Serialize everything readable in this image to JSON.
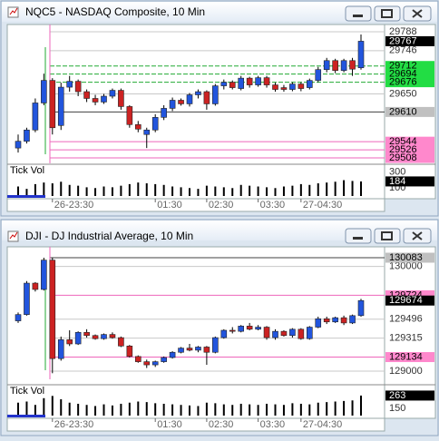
{
  "chart_data": [
    {
      "type": "candlestick",
      "title": "NQC5 - NASDAQ Composite, 10 Min",
      "categories": [
        null,
        null,
        null,
        null,
        "26-23:30",
        null,
        null,
        null,
        null,
        null,
        null,
        null,
        null,
        null,
        null,
        null,
        "01:30",
        null,
        null,
        null,
        null,
        null,
        "02:30",
        null,
        null,
        null,
        null,
        null,
        "03:30",
        null,
        null,
        null,
        null,
        "27-04:30",
        null,
        null,
        null,
        null,
        null,
        null,
        null
      ],
      "open": [
        29530,
        29545,
        29570,
        29630,
        29680,
        29580,
        29665,
        29678,
        29655,
        29640,
        29632,
        29645,
        29658,
        29622,
        29582,
        29560,
        29570,
        29598,
        29618,
        29636,
        29628,
        29648,
        29655,
        29628,
        29668,
        29676,
        29662,
        29685,
        29670,
        29686,
        29670,
        29664,
        29660,
        29672,
        29664,
        29680,
        29704,
        29724,
        29702,
        29724,
        29708
      ],
      "high": [
        29560,
        29575,
        29640,
        29695,
        29685,
        29675,
        29690,
        29682,
        29660,
        29648,
        29650,
        29662,
        29662,
        29625,
        29590,
        29575,
        29605,
        29625,
        29642,
        29640,
        29652,
        29660,
        29658,
        29672,
        29682,
        29680,
        29690,
        29688,
        29690,
        29690,
        29675,
        29670,
        29676,
        29676,
        29684,
        29710,
        29730,
        29728,
        29728,
        29730,
        29782
      ],
      "low": [
        29520,
        29540,
        29565,
        29625,
        29560,
        29570,
        29655,
        29645,
        29632,
        29625,
        29628,
        29640,
        29615,
        29575,
        29565,
        29530,
        29565,
        29592,
        29612,
        29624,
        29622,
        29640,
        29615,
        29624,
        29660,
        29660,
        29658,
        29664,
        29666,
        29664,
        29655,
        29655,
        29656,
        29656,
        29660,
        29676,
        29698,
        29696,
        29698,
        29690,
        29704
      ],
      "close": [
        29545,
        29570,
        29630,
        29680,
        29575,
        29665,
        29678,
        29655,
        29640,
        29632,
        29645,
        29658,
        29622,
        29582,
        29572,
        29570,
        29598,
        29618,
        29636,
        29628,
        29648,
        29655,
        29628,
        29668,
        29676,
        29664,
        29685,
        29670,
        29686,
        29670,
        29660,
        29660,
        29672,
        29662,
        29680,
        29704,
        29724,
        29702,
        29724,
        29705,
        29767
      ],
      "up_color": "#2255dd",
      "down_color": "#cc2222",
      "ylim": [
        29496,
        29794
      ],
      "yticks": [
        29788,
        29746,
        29650
      ],
      "levels": [
        {
          "value": 29712,
          "color": "#22dd44",
          "line": "#22aa33"
        },
        {
          "value": 29694,
          "color": "#22dd44",
          "line": "#22aa33"
        },
        {
          "value": 29676,
          "color": "#22dd44",
          "line": "#22aa33"
        },
        {
          "value": 29610,
          "color": "#c0c0c0",
          "line": "#404040"
        },
        {
          "value": 29544,
          "color": "#ff88cc",
          "line": "#ee66bb"
        },
        {
          "value": 29526,
          "color": "#ff88cc",
          "line": "#ee66bb"
        },
        {
          "value": 29508,
          "color": "#ff88cc",
          "line": "#ee66bb"
        }
      ],
      "volume": {
        "label": "Tick Vol",
        "color": "#000000",
        "values": [
          120,
          90,
          150,
          170,
          160,
          180,
          140,
          130,
          110,
          100,
          120,
          110,
          130,
          150,
          170,
          160,
          150,
          140,
          120,
          110,
          100,
          90,
          130,
          120,
          110,
          100,
          140,
          130,
          120,
          110,
          100,
          120,
          130,
          150,
          140,
          160,
          170,
          180,
          200,
          190,
          184
        ],
        "ylim": [
          0,
          355
        ],
        "yticks": [
          300,
          100
        ]
      }
    },
    {
      "type": "candlestick",
      "title": "DJI - DJ Industrial Average, 10 Min",
      "categories": [
        null,
        null,
        null,
        null,
        "26-23:30",
        null,
        null,
        null,
        null,
        null,
        null,
        null,
        null,
        null,
        null,
        null,
        "01:30",
        null,
        null,
        null,
        null,
        null,
        "02:30",
        null,
        null,
        null,
        null,
        null,
        "03:30",
        null,
        null,
        null,
        null,
        "27-04:30",
        null,
        null,
        null,
        null,
        null,
        null,
        null
      ],
      "open": [
        129480,
        129540,
        129840,
        129780,
        130060,
        129120,
        129300,
        129260,
        129370,
        129340,
        129310,
        129350,
        129320,
        129240,
        129140,
        129090,
        129060,
        129090,
        129130,
        129180,
        129220,
        129200,
        129230,
        129180,
        129320,
        129390,
        129380,
        129430,
        129400,
        129420,
        129320,
        129380,
        129340,
        129400,
        129310,
        129420,
        129500,
        129470,
        129510,
        129460,
        129530
      ],
      "high": [
        129560,
        129860,
        129850,
        130083,
        130083,
        129330,
        129390,
        129380,
        129400,
        129350,
        129360,
        129370,
        129330,
        129250,
        129150,
        129110,
        129100,
        129140,
        129190,
        129230,
        129260,
        129240,
        129240,
        129330,
        129400,
        129420,
        129440,
        129460,
        129440,
        129430,
        129400,
        129390,
        129410,
        129410,
        129430,
        129520,
        129520,
        129520,
        129530,
        129540,
        129690
      ],
      "low": [
        129460,
        129530,
        129760,
        129770,
        128980,
        129100,
        129240,
        129250,
        129320,
        129300,
        129300,
        129310,
        129230,
        129130,
        129080,
        129030,
        129040,
        129080,
        129120,
        129170,
        129190,
        129180,
        129060,
        129170,
        129310,
        129360,
        129370,
        129390,
        129390,
        129300,
        129300,
        129330,
        129320,
        129300,
        129300,
        129410,
        129450,
        129460,
        129440,
        129450,
        129520
      ],
      "close": [
        129540,
        129840,
        129780,
        130060,
        129120,
        129300,
        129260,
        129370,
        129340,
        129310,
        129350,
        129320,
        129240,
        129140,
        129090,
        129060,
        129090,
        129130,
        129180,
        129220,
        129200,
        129230,
        129180,
        129320,
        129390,
        129380,
        129430,
        129400,
        129420,
        129320,
        129380,
        129340,
        129400,
        129310,
        129420,
        129500,
        129470,
        129510,
        129460,
        129530,
        129674
      ],
      "up_color": "#2255dd",
      "down_color": "#cc2222",
      "ylim": [
        128922,
        130135
      ],
      "yticks": [
        130000,
        129496,
        129315,
        129000
      ],
      "levels": [
        {
          "value": 130083,
          "color": "#c0c0c0",
          "line": "#404040"
        },
        {
          "value": 129724,
          "color": "#ff88cc",
          "line": "#ee66bb"
        },
        {
          "value": 129134,
          "color": "#ff88cc",
          "line": "#ee66bb"
        }
      ],
      "volume": {
        "label": "Tick Vol",
        "color": "#000000",
        "values": [
          200,
          210,
          180,
          240,
          260,
          230,
          200,
          190,
          180,
          170,
          185,
          175,
          190,
          200,
          210,
          205,
          195,
          190,
          185,
          180,
          175,
          170,
          200,
          195,
          185,
          180,
          190,
          185,
          180,
          190,
          185,
          180,
          195,
          190,
          185,
          200,
          205,
          210,
          215,
          220,
          263
        ],
        "ylim": [
          85,
          327
        ],
        "yticks": [
          150
        ]
      }
    }
  ]
}
